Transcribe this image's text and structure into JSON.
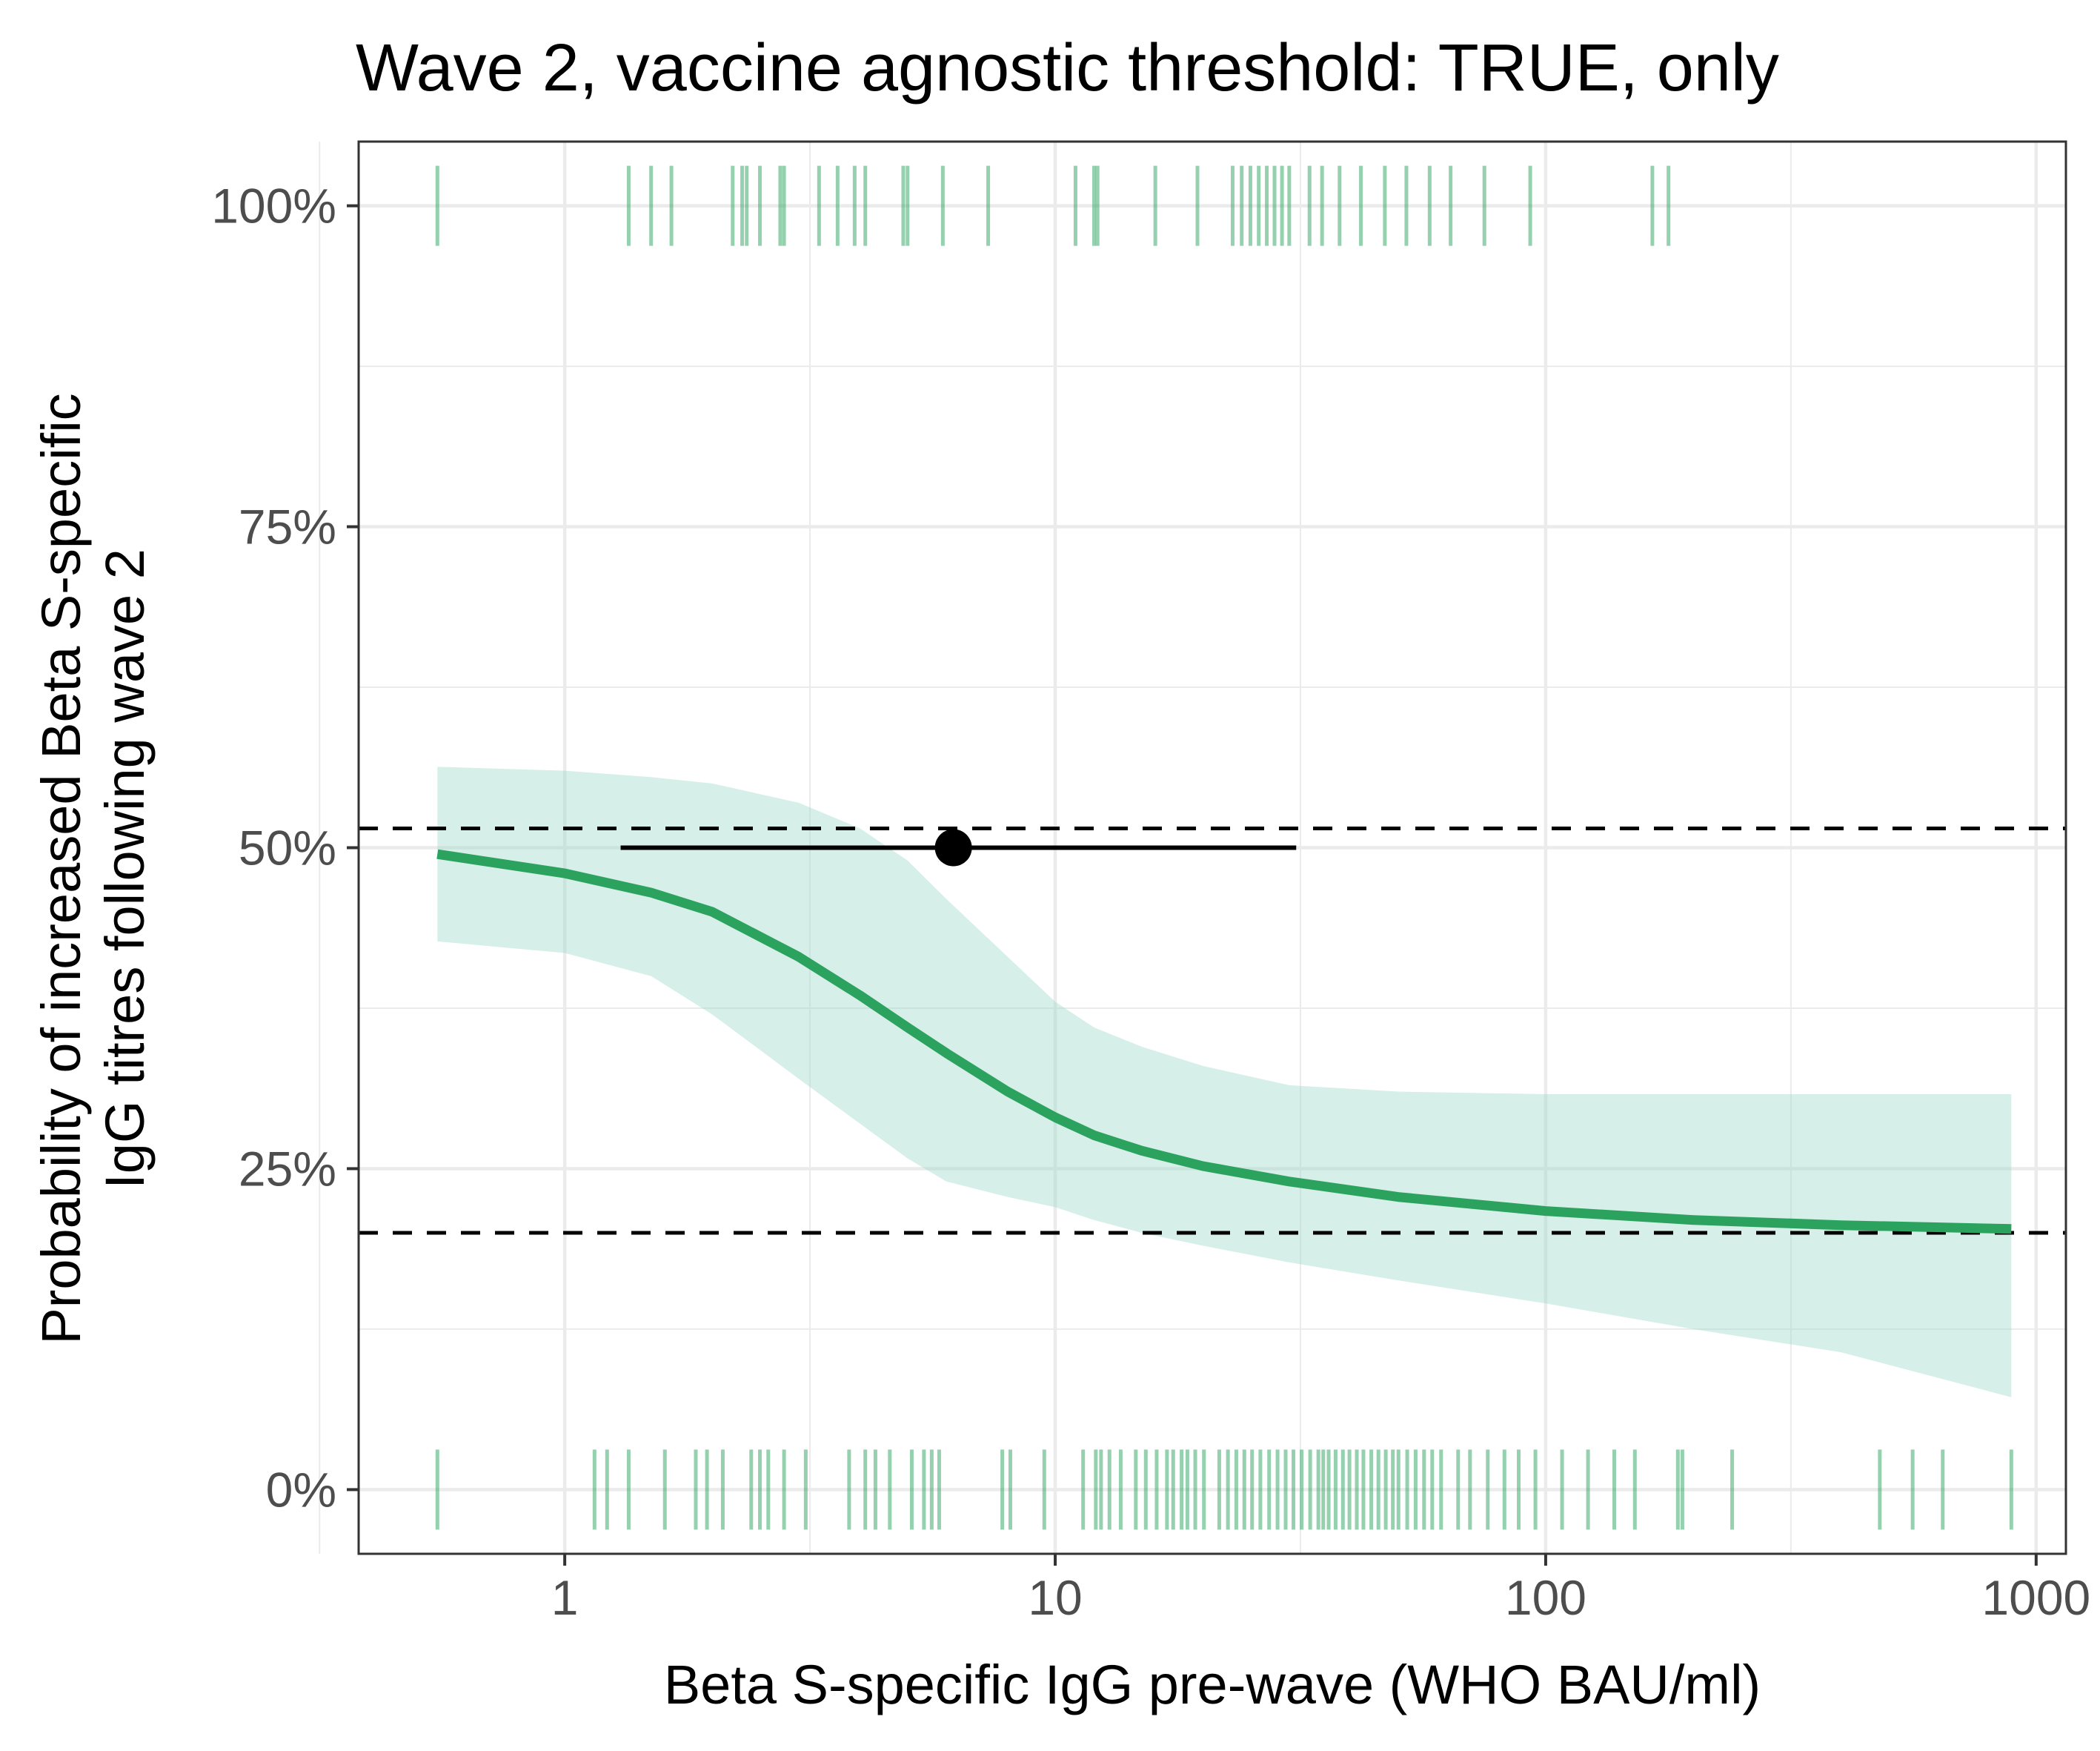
{
  "chart_data": {
    "type": "line",
    "title": "Wave 2, vaccine agnostic threshold: TRUE, only",
    "xlabel": "Beta S-specific IgG pre-wave (WHO BAU/ml)",
    "ylabel_lines": [
      "Probability of increased Beta S-specific",
      "IgG titres following wave 2"
    ],
    "x_scale": "log10",
    "xlim": [
      0.38,
      1150
    ],
    "ylim": [
      -0.05,
      1.05
    ],
    "x_ticks": [
      {
        "value": 1,
        "label": "1"
      },
      {
        "value": 10,
        "label": "10"
      },
      {
        "value": 100,
        "label": "100"
      },
      {
        "value": 1000,
        "label": "1000"
      }
    ],
    "y_ticks": [
      {
        "value": 0,
        "label": "0%"
      },
      {
        "value": 0.25,
        "label": "25%"
      },
      {
        "value": 0.5,
        "label": "50%"
      },
      {
        "value": 0.75,
        "label": "75%"
      },
      {
        "value": 1,
        "label": "100%"
      }
    ],
    "colors": {
      "curve": "#2ca25f",
      "ribbon": "#99d8c9",
      "rug": "#2ca25f",
      "grid": "#ebebeb",
      "reference": "#000000"
    },
    "series": [
      {
        "name": "fitted probability",
        "x": [
          0.55,
          1,
          1.5,
          2,
          3,
          4,
          5,
          6,
          8,
          10,
          12,
          15,
          20,
          30,
          50,
          100,
          200,
          400,
          890
        ],
        "y": [
          0.495,
          0.48,
          0.465,
          0.45,
          0.415,
          0.385,
          0.36,
          0.34,
          0.31,
          0.29,
          0.276,
          0.264,
          0.252,
          0.24,
          0.228,
          0.217,
          0.21,
          0.206,
          0.203
        ],
        "ci_lower": [
          0.427,
          0.418,
          0.4,
          0.37,
          0.32,
          0.285,
          0.258,
          0.24,
          0.228,
          0.22,
          0.21,
          0.2,
          0.19,
          0.177,
          0.163,
          0.145,
          0.125,
          0.107,
          0.072
        ],
        "ci_upper": [
          0.563,
          0.56,
          0.555,
          0.55,
          0.535,
          0.515,
          0.49,
          0.46,
          0.415,
          0.38,
          0.36,
          0.345,
          0.33,
          0.315,
          0.31,
          0.308,
          0.308,
          0.308,
          0.308
        ]
      }
    ],
    "point_estimate": {
      "x": 6.2,
      "y": 0.5,
      "x_lower": 1.3,
      "x_upper": 31
    },
    "reference_lines": [
      0.515,
      0.2
    ],
    "rug_top": [
      0.55,
      1.35,
      1.5,
      1.65,
      2.2,
      2.3,
      2.35,
      2.5,
      2.75,
      2.8,
      3.3,
      3.6,
      3.9,
      4.1,
      4.9,
      5.0,
      5.9,
      7.3,
      11,
      12,
      12.2,
      16,
      19.5,
      23,
      24,
      25,
      26,
      27,
      28,
      29,
      30,
      33,
      35,
      38,
      42,
      47,
      52,
      58,
      64,
      75,
      93,
      165,
      178
    ],
    "rug_bottom": [
      0.55,
      1.15,
      1.22,
      1.35,
      1.6,
      1.85,
      1.95,
      2.1,
      2.4,
      2.5,
      2.6,
      2.8,
      3.1,
      3.8,
      4.1,
      4.3,
      4.6,
      5.1,
      5.4,
      5.6,
      5.8,
      7.8,
      8.1,
      9.5,
      11.4,
      12.1,
      12.4,
      12.9,
      13.6,
      14.6,
      15.3,
      16.1,
      16.9,
      17.4,
      18.1,
      18.6,
      19.3,
      20.1,
      21.6,
      22.5,
      23.4,
      24.3,
      25.2,
      26.2,
      27.3,
      28.4,
      29.5,
      30.6,
      31.8,
      33.1,
      34.4,
      35.2,
      36.1,
      37.3,
      38.6,
      39.8,
      41.2,
      42.5,
      44.1,
      45.6,
      47.2,
      48.8,
      50.1,
      52.2,
      54.3,
      56.5,
      58.7,
      61.2,
      66.3,
      70.1,
      76.2,
      82.4,
      88.1,
      95.3,
      108,
      122,
      138,
      152,
      186,
      190,
      240,
      480,
      560,
      645,
      890
    ]
  }
}
